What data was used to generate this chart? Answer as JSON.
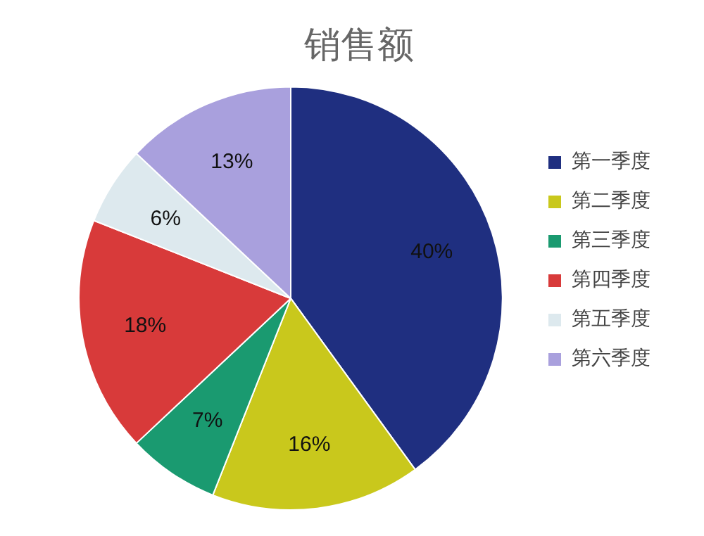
{
  "chart_data": {
    "type": "pie",
    "title": "销售额",
    "categories": [
      "第一季度",
      "第二季度",
      "第三季度",
      "第四季度",
      "第五季度",
      "第六季度"
    ],
    "values": [
      40,
      16,
      7,
      18,
      6,
      13
    ],
    "value_labels": [
      "40%",
      "16%",
      "7%",
      "18%",
      "6%",
      "13%"
    ],
    "colors": [
      "#1f2f80",
      "#c9c81c",
      "#1a9a70",
      "#d83a3a",
      "#dde9ee",
      "#a9a0dd"
    ],
    "legend": "right"
  }
}
